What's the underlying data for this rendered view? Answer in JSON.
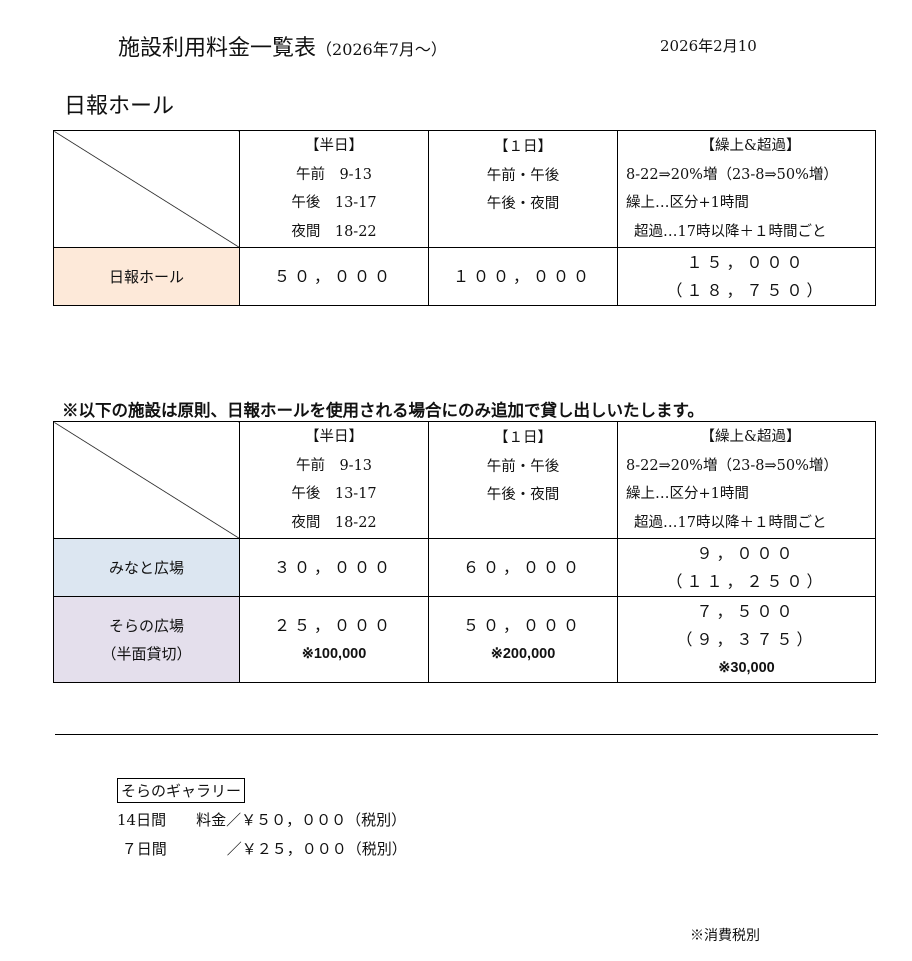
{
  "header": {
    "title": "施設利用料金一覧表",
    "title_suffix": "（2026年7月～）",
    "date": "2026年2月10"
  },
  "section_title": "日報ホール",
  "columns": {
    "half": {
      "label": "【半日】",
      "lines": [
        "午前　9-13",
        "午後　13-17",
        "夜間　18-22"
      ]
    },
    "day": {
      "label": "【１日】",
      "lines": [
        "午前・午後",
        "午後・夜間"
      ]
    },
    "extra": {
      "label": "【繰上&超過】",
      "lines": [
        "8-22⇒20%増（23-8⇒50%増）",
        "繰上…区分+1時間",
        "超過…17時以降＋１時間ごと"
      ]
    }
  },
  "table1": {
    "rows": [
      {
        "name": "日報ホール",
        "half": "５０，０００",
        "day": "１００，０００",
        "extra": "１５，０００",
        "extra2": "（１８，７５０）"
      }
    ]
  },
  "note": "※以下の施設は原則、日報ホールを使用される場合にのみ追加で貸し出しいたします。",
  "table2": {
    "rows": [
      {
        "name": "みなと広場",
        "half": "３０，０００",
        "day": "６０，０００",
        "extra": "９，０００",
        "extra2": "（１１，２５０）"
      },
      {
        "name": "そらの広場",
        "name2": "（半面貸切）",
        "half": "２５，０００",
        "half_sub": "※100,000",
        "day": "５０，０００",
        "day_sub": "※200,000",
        "extra": "７，５００",
        "extra2": "（９，３７５）",
        "extra_sub": "※30,000"
      }
    ]
  },
  "row_colors": {
    "hall": "#fde9d9",
    "minato": "#dce6f1",
    "sora": "#e4dfec"
  },
  "gallery": {
    "title": "そらのギャラリー",
    "lines": [
      "14日間　　料金／￥５０，０００（税別）",
      " ７日間　　　　／￥２５，０００（税別）"
    ]
  },
  "footnote": "※消費税別"
}
